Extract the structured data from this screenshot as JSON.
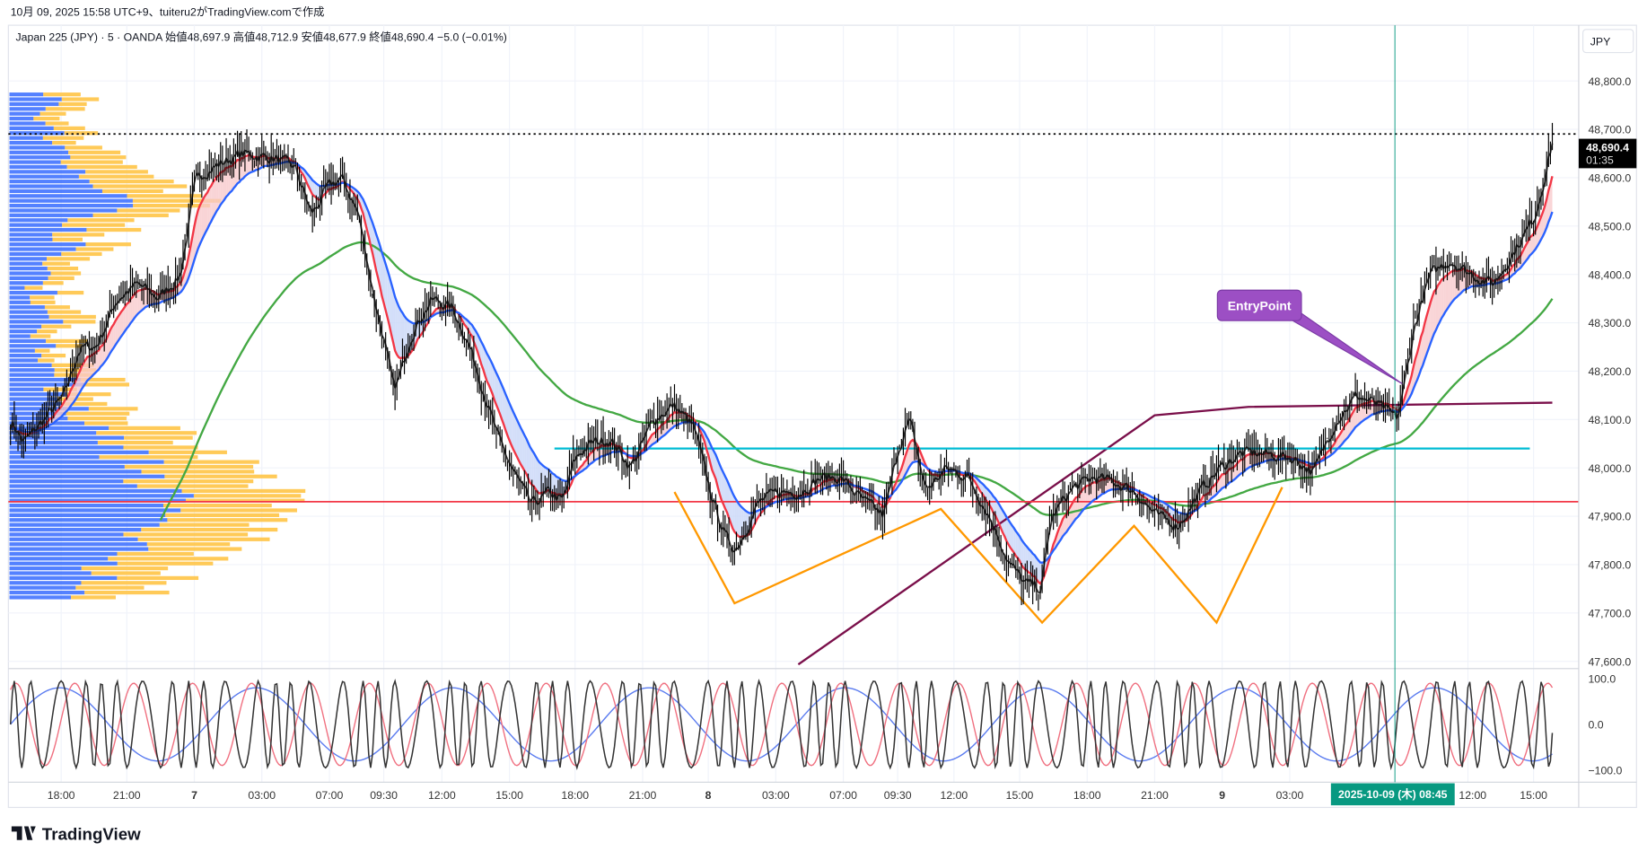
{
  "caption": "10月 09, 2025 15:58 UTC+9、tuiteru2がTradingView.comで作成",
  "legend": "Japan 225 (JPY) · 5 · OANDA  始値48,697.9  高値48,712.9  安値48,677.9  終値48,690.4  −5.0 (−0.01%)",
  "currency": "JPY",
  "last_price": "48,690.4",
  "countdown": "01:35",
  "crosshair_label": "2025-10-09 (木)   08:45",
  "annotation": "EntryPoint",
  "logo": "TradingView",
  "colors": {
    "up_fill": "#f8c9cc",
    "down_fill": "#c8d6f7",
    "fast_ma": "#f23645",
    "slow_ma": "#2962ff",
    "long_ma": "#43a843",
    "custom_ma": "#7a0f4a",
    "support": "#00bcd4",
    "poc": "#f23645",
    "pattern": "#ff9800",
    "label": "#9c4fc4",
    "crosshair": "#089981"
  },
  "chart_data": {
    "type": "candlestick",
    "title": "Japan 225 (JPY) · 5 · OANDA",
    "ylabel": "JPY",
    "ylim": [
      47580,
      48850
    ],
    "yticks": [
      "48,800.0",
      "48,700.0",
      "48,600.0",
      "48,500.0",
      "48,400.0",
      "48,300.0",
      "48,200.0",
      "48,100.0",
      "48,000.0",
      "47,900.0",
      "47,800.0",
      "47,700.0",
      "47,600.0"
    ],
    "ytick_values": [
      48800,
      48700,
      48600,
      48500,
      48400,
      48300,
      48200,
      48100,
      48000,
      47900,
      47800,
      47700,
      47600
    ],
    "xticks": [
      {
        "bar": 27,
        "label": "18:00"
      },
      {
        "bar": 62,
        "label": "21:00"
      },
      {
        "bar": 98,
        "label": "7"
      },
      {
        "bar": 134,
        "label": "03:00"
      },
      {
        "bar": 170,
        "label": "07:00"
      },
      {
        "bar": 199,
        "label": "09:30"
      },
      {
        "bar": 230,
        "label": "12:00"
      },
      {
        "bar": 266,
        "label": "15:00"
      },
      {
        "bar": 301,
        "label": "18:00"
      },
      {
        "bar": 337,
        "label": "21:00"
      },
      {
        "bar": 372,
        "label": "8"
      },
      {
        "bar": 408,
        "label": "03:00"
      },
      {
        "bar": 444,
        "label": "07:00"
      },
      {
        "bar": 473,
        "label": "09:30"
      },
      {
        "bar": 503,
        "label": "12:00"
      },
      {
        "bar": 538,
        "label": "15:00"
      },
      {
        "bar": 574,
        "label": "18:00"
      },
      {
        "bar": 610,
        "label": "21:00"
      },
      {
        "bar": 646,
        "label": "9"
      },
      {
        "bar": 682,
        "label": "03:00"
      },
      {
        "bar": 777,
        "label": "12:00"
      },
      {
        "bar": 812,
        "label": "15:00"
      }
    ],
    "close_path": [
      [
        0,
        48100
      ],
      [
        6,
        48050
      ],
      [
        17,
        48100
      ],
      [
        28,
        48150
      ],
      [
        36,
        48250
      ],
      [
        45,
        48250
      ],
      [
        56,
        48350
      ],
      [
        67,
        48380
      ],
      [
        78,
        48350
      ],
      [
        90,
        48400
      ],
      [
        98,
        48600
      ],
      [
        106,
        48620
      ],
      [
        123,
        48650
      ],
      [
        140,
        48640
      ],
      [
        151,
        48620
      ],
      [
        160,
        48520
      ],
      [
        168,
        48580
      ],
      [
        176,
        48600
      ],
      [
        185,
        48520
      ],
      [
        193,
        48350
      ],
      [
        199,
        48250
      ],
      [
        204,
        48150
      ],
      [
        213,
        48280
      ],
      [
        224,
        48350
      ],
      [
        235,
        48330
      ],
      [
        244,
        48250
      ],
      [
        252,
        48150
      ],
      [
        260,
        48050
      ],
      [
        269,
        47980
      ],
      [
        277,
        47920
      ],
      [
        286,
        47950
      ],
      [
        294,
        47930
      ],
      [
        300,
        48020
      ],
      [
        308,
        48050
      ],
      [
        319,
        48060
      ],
      [
        330,
        48000
      ],
      [
        342,
        48100
      ],
      [
        353,
        48130
      ],
      [
        364,
        48080
      ],
      [
        372,
        47950
      ],
      [
        381,
        47850
      ],
      [
        386,
        47830
      ],
      [
        398,
        47930
      ],
      [
        409,
        47950
      ],
      [
        420,
        47950
      ],
      [
        431,
        47980
      ],
      [
        442,
        47980
      ],
      [
        454,
        47930
      ],
      [
        465,
        47900
      ],
      [
        473,
        48050
      ],
      [
        479,
        48100
      ],
      [
        487,
        47950
      ],
      [
        498,
        48000
      ],
      [
        510,
        47980
      ],
      [
        521,
        47900
      ],
      [
        532,
        47800
      ],
      [
        540,
        47760
      ],
      [
        549,
        47750
      ],
      [
        554,
        47900
      ],
      [
        566,
        47960
      ],
      [
        577,
        47980
      ],
      [
        588,
        47970
      ],
      [
        599,
        47950
      ],
      [
        610,
        47900
      ],
      [
        622,
        47880
      ],
      [
        633,
        47950
      ],
      [
        644,
        48000
      ],
      [
        655,
        48030
      ],
      [
        666,
        48030
      ],
      [
        683,
        48020
      ],
      [
        694,
        47990
      ],
      [
        706,
        48100
      ],
      [
        717,
        48150
      ],
      [
        728,
        48130
      ],
      [
        739,
        48100
      ],
      [
        748,
        48300
      ],
      [
        756,
        48400
      ],
      [
        767,
        48430
      ],
      [
        778,
        48400
      ],
      [
        790,
        48380
      ],
      [
        801,
        48450
      ],
      [
        812,
        48520
      ],
      [
        818,
        48620
      ],
      [
        822,
        48690
      ]
    ],
    "horizontal_lines": [
      {
        "price": 48040,
        "name": "support"
      },
      {
        "price": 47930,
        "name": "poc"
      },
      {
        "price": 48690.4,
        "name": "last-price"
      }
    ],
    "pattern_points": [
      [
        354,
        47950
      ],
      [
        386,
        47720
      ],
      [
        496,
        47915
      ],
      [
        550,
        47680
      ],
      [
        599,
        47880
      ],
      [
        643,
        47680
      ],
      [
        678,
        47960
      ]
    ],
    "oscillator": {
      "yticks": [
        "100.0",
        "0.0",
        "−100.0"
      ],
      "ytick_values": [
        100,
        0,
        -100
      ]
    },
    "crosshair_bar": 740
  }
}
